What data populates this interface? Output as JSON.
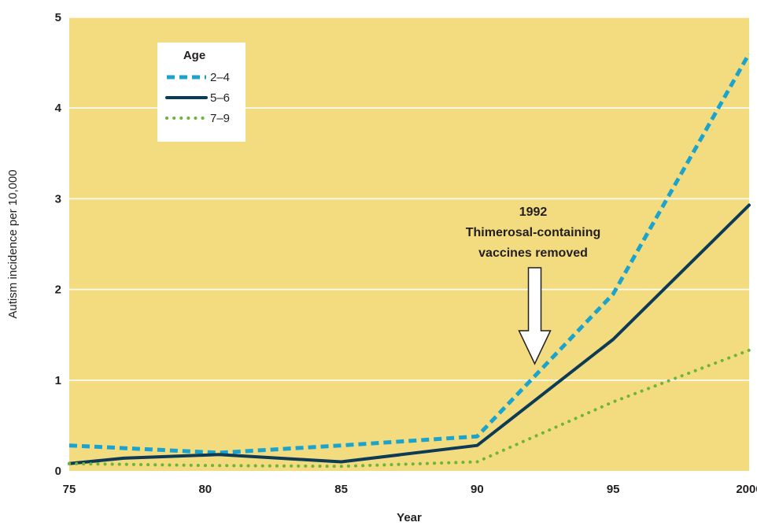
{
  "chart_data": {
    "type": "line",
    "xlabel": "Year",
    "ylabel": "Autism incidence per 10,000",
    "x": [
      75,
      80,
      85,
      90,
      95,
      100
    ],
    "x_tick_labels": [
      "75",
      "80",
      "85",
      "90",
      "95",
      "2000"
    ],
    "y_ticks": [
      0,
      1,
      2,
      3,
      4,
      5
    ],
    "y_tick_labels": [
      "0",
      "1",
      "2",
      "3",
      "4",
      "5"
    ],
    "xlim": [
      75,
      100
    ],
    "ylim": [
      0,
      5
    ],
    "grid": true,
    "background_color": "#f2dc7f",
    "legend": {
      "title": "Age",
      "placement": "top-left"
    },
    "series": [
      {
        "name": "2–4",
        "style": "dashed",
        "color": "#1aa3cc",
        "points": [
          [
            75,
            0.28
          ],
          [
            80.5,
            0.2
          ],
          [
            85,
            0.28
          ],
          [
            90,
            0.38
          ],
          [
            95,
            1.95
          ],
          [
            100,
            4.6
          ]
        ]
      },
      {
        "name": "5–6",
        "style": "solid",
        "color": "#0d3a55",
        "points": [
          [
            75,
            0.08
          ],
          [
            77,
            0.14
          ],
          [
            80.5,
            0.18
          ],
          [
            85,
            0.1
          ],
          [
            90,
            0.28
          ],
          [
            95,
            1.45
          ],
          [
            100,
            2.93
          ]
        ]
      },
      {
        "name": "7–9",
        "style": "dotted",
        "color": "#6db33f",
        "points": [
          [
            75,
            0.08
          ],
          [
            80,
            0.06
          ],
          [
            85,
            0.05
          ],
          [
            90,
            0.1
          ],
          [
            95,
            0.76
          ],
          [
            100,
            1.33
          ]
        ]
      }
    ],
    "annotation": {
      "lines": [
        "1992",
        "Thimerosal-containing",
        "vaccines removed"
      ],
      "x": 92
    }
  }
}
